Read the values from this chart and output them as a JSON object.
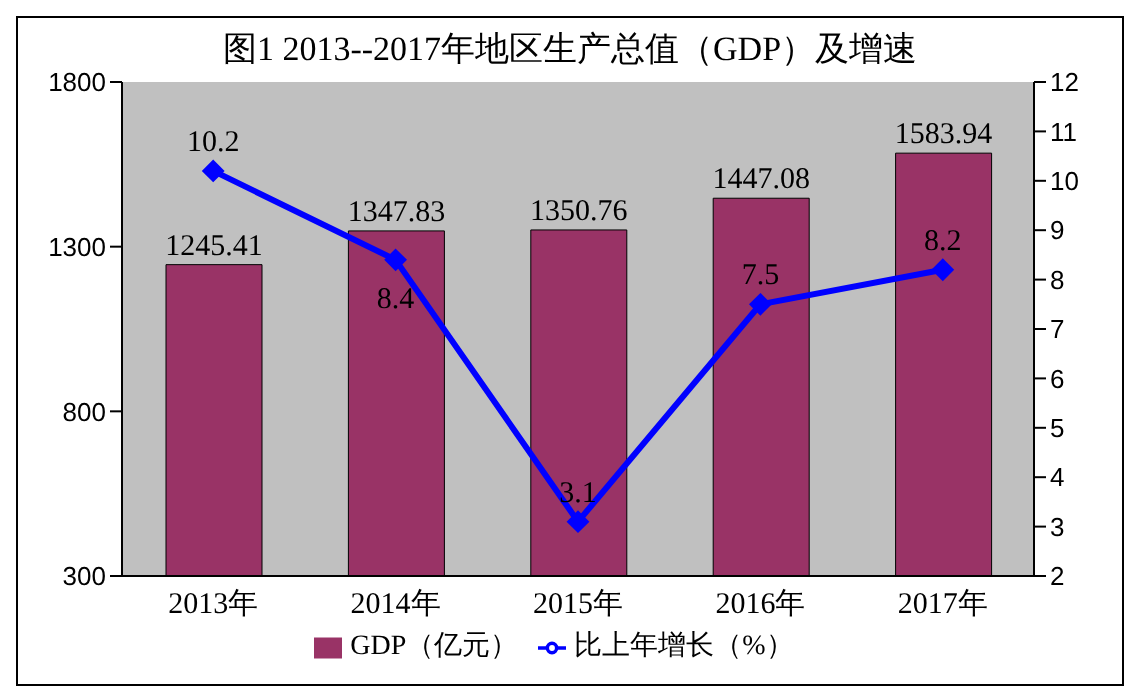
{
  "chart_data": {
    "type": "bar",
    "title": "图1  2013--2017年地区生产总值（GDP）及增速",
    "categories": [
      "2013年",
      "2014年",
      "2015年",
      "2016年",
      "2017年"
    ],
    "series": [
      {
        "name": "GDP（亿元）",
        "color": "#993366",
        "values": [
          1245.41,
          1347.83,
          1350.76,
          1447.08,
          1583.94
        ]
      },
      {
        "name": "比上年增长（%）",
        "type": "line",
        "axis": "y2",
        "color": "#0000ff",
        "marker": "diamond",
        "values": [
          10.2,
          8.4,
          3.1,
          7.5,
          8.2
        ]
      }
    ],
    "ylim": [
      300,
      1800
    ],
    "yticks": [
      300,
      800,
      1300,
      1800
    ],
    "y2lim": [
      2,
      12
    ],
    "y2ticks": [
      2,
      3,
      4,
      5,
      6,
      7,
      8,
      9,
      10,
      11,
      12
    ],
    "data_labels": true,
    "grid": false,
    "legend": "bottom"
  }
}
